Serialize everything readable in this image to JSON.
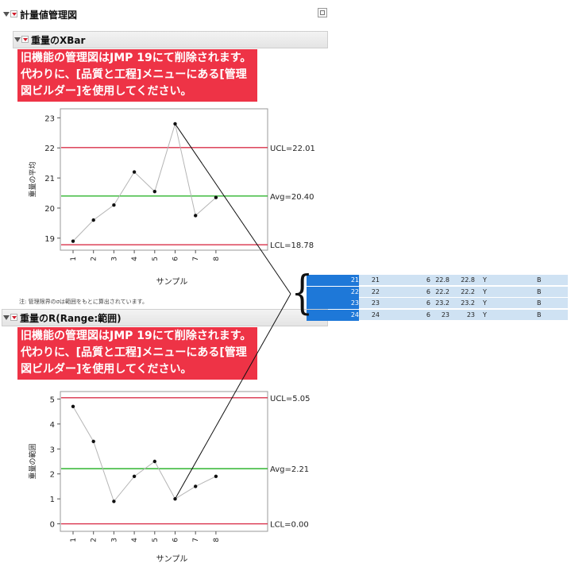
{
  "report": {
    "title": "計量値管理図",
    "xbar_title": "重量のXBar",
    "r_title": "重量のR(Range:範囲)",
    "warning": "旧機能の管理図はJMP 19にて削除されます。代わりに、[品質と工程]メニューにある[管理図ビルダー]を使用してください。",
    "note": "注: 管理限界のσは範囲をもとに算出されています。",
    "brace": "{"
  },
  "chart_data": [
    {
      "type": "line",
      "ylabel": "重量の平均",
      "xlabel": "サンプル",
      "x": [
        1,
        2,
        3,
        4,
        5,
        6,
        7,
        8
      ],
      "xticks": [
        "1",
        "2",
        "3",
        "4",
        "5",
        "6",
        "7",
        "8"
      ],
      "values": [
        18.9,
        19.6,
        20.1,
        21.2,
        20.55,
        22.8,
        19.75,
        20.35
      ],
      "ylim": [
        18.6,
        23.3
      ],
      "yticks": [
        19,
        20,
        21,
        22,
        23
      ],
      "limits": {
        "ucl": 22.01,
        "avg": 20.4,
        "lcl": 18.78
      },
      "limit_labels": {
        "ucl": "UCL=22.01",
        "avg": "Avg=20.40",
        "lcl": "LCL=18.78"
      },
      "colors": {
        "ucl": "#d9304a",
        "avg": "#2fb52f",
        "lcl": "#d9304a",
        "series": "#b5b5b5",
        "points": "#111111"
      }
    },
    {
      "type": "line",
      "ylabel": "重量の範囲",
      "xlabel": "サンプル",
      "x": [
        1,
        2,
        3,
        4,
        5,
        6,
        7,
        8
      ],
      "xticks": [
        "1",
        "2",
        "3",
        "4",
        "5",
        "6",
        "7",
        "8"
      ],
      "values": [
        4.7,
        3.3,
        0.9,
        1.9,
        2.5,
        1.0,
        1.5,
        1.9
      ],
      "ylim": [
        -0.3,
        5.3
      ],
      "yticks": [
        0,
        1,
        2,
        3,
        4,
        5
      ],
      "limits": {
        "ucl": 5.05,
        "avg": 2.21,
        "lcl": 0.0
      },
      "limit_labels": {
        "ucl": "UCL=5.05",
        "avg": "Avg=2.21",
        "lcl": "LCL=0.00"
      },
      "colors": {
        "ucl": "#d9304a",
        "avg": "#2fb52f",
        "lcl": "#d9304a",
        "series": "#b5b5b5",
        "points": "#111111"
      }
    }
  ],
  "table": {
    "rows": [
      [
        "21",
        "21",
        "6",
        "22.8",
        "22.8",
        "Y",
        "B"
      ],
      [
        "22",
        "22",
        "6",
        "22.2",
        "22.2",
        "Y",
        "B"
      ],
      [
        "23",
        "23",
        "6",
        "23.2",
        "23.2",
        "Y",
        "B"
      ],
      [
        "24",
        "24",
        "6",
        "23",
        "23",
        "Y",
        "B"
      ]
    ]
  }
}
